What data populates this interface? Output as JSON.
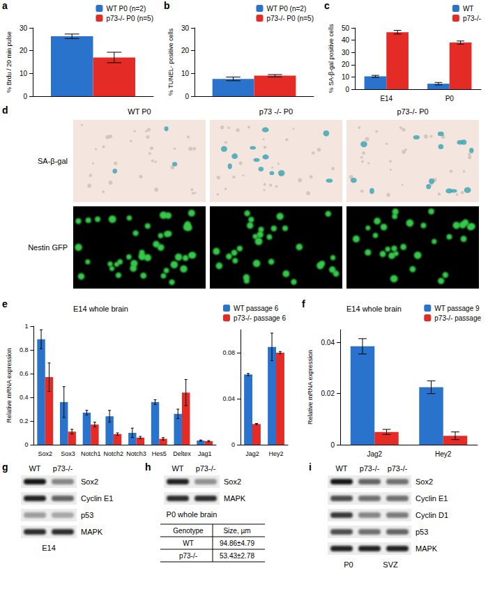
{
  "chart_data": [
    {
      "panel": "a",
      "type": "bar",
      "categories": [
        null
      ],
      "y_label": "% Brdu / 20 min pulse",
      "ylim": [
        0,
        30
      ],
      "yticks": [
        0,
        10,
        20,
        30
      ],
      "grid": false,
      "legend": "top-right",
      "series": [
        {
          "name": "WT P0 (n=2)",
          "color": "#2a73cc",
          "values": [
            26.3
          ],
          "errors": [
            1.0
          ]
        },
        {
          "name": "p73-/- P0 (n=5)",
          "color": "#e52b25",
          "values": [
            17.0
          ],
          "errors": [
            2.3
          ]
        }
      ]
    },
    {
      "panel": "b",
      "type": "bar",
      "categories": [
        null
      ],
      "y_label": "% TUNEL- positive cells",
      "ylim": [
        0,
        30
      ],
      "yticks": [
        0,
        10,
        20,
        30
      ],
      "grid": false,
      "legend": "top-right",
      "series": [
        {
          "name": "WT P0 (n=2)",
          "color": "#2a73cc",
          "values": [
            7.6
          ],
          "errors": [
            0.8
          ]
        },
        {
          "name": "p73-/- P0 (n=5)",
          "color": "#e52b25",
          "values": [
            9.0
          ],
          "errors": [
            0.5
          ]
        }
      ]
    },
    {
      "panel": "c",
      "type": "bar",
      "categories": [
        "E14",
        "P0"
      ],
      "y_label": "% SA-β-gal positive cells",
      "ylim": [
        0,
        50
      ],
      "yticks": [
        0,
        10,
        20,
        30,
        40,
        50
      ],
      "grid": false,
      "legend": "top-right",
      "series": [
        {
          "name": "WT",
          "color": "#2a73cc",
          "values": [
            10.5,
            4.5
          ],
          "errors": [
            0.8,
            1.0
          ]
        },
        {
          "name": "p73-/-",
          "color": "#e52b25",
          "values": [
            46.5,
            38.0
          ],
          "errors": [
            1.5,
            1.3
          ]
        }
      ]
    },
    {
      "panel": "e",
      "type": "bar",
      "title": "E14 whole brain",
      "y_label": "Relative mRNA expression",
      "grid": false,
      "legend": "top-right",
      "series": [
        {
          "name": "WT passage 6",
          "color": "#2a73cc"
        },
        {
          "name": "p73-/- passage 6",
          "color": "#e52b25"
        }
      ],
      "subplots": [
        {
          "categories": [
            "Sox2",
            "Sox3",
            "Notch1",
            "Notch2",
            "Notch3",
            "Hes5",
            "Deltex",
            "Jag1"
          ],
          "ylim": [
            0,
            1
          ],
          "yticks": [
            0,
            0.2,
            0.4,
            0.6,
            0.8,
            1
          ],
          "values": [
            [
              0.89,
              0.36,
              0.27,
              0.24,
              0.1,
              0.36,
              0.26,
              0.035
            ],
            [
              0.57,
              0.11,
              0.17,
              0.09,
              0.06,
              0.05,
              0.44,
              0.03
            ]
          ],
          "errors": [
            [
              0.08,
              0.13,
              0.02,
              0.05,
              0.04,
              0.02,
              0.04,
              0.005
            ],
            [
              0.12,
              0.02,
              0.02,
              0.01,
              0.01,
              0.01,
              0.11,
              0.005
            ]
          ]
        },
        {
          "categories": [
            "Jag2",
            "Hey2"
          ],
          "ylim": [
            0,
            0.1
          ],
          "yticks": [
            0,
            0.04,
            0.08
          ],
          "values": [
            [
              0.061,
              0.085
            ],
            [
              0.018,
              0.08
            ]
          ],
          "errors": [
            [
              0.001,
              0.012
            ],
            [
              0.0005,
              0.001
            ]
          ]
        }
      ]
    },
    {
      "panel": "f",
      "type": "bar",
      "title": "E14 whole brain",
      "y_label": "Relative mRNA expression",
      "categories": [
        "Jag2",
        "Hey2"
      ],
      "ylim": [
        0,
        0.045
      ],
      "yticks": [
        0,
        0.02,
        0.04
      ],
      "grid": false,
      "legend": "top-right",
      "series": [
        {
          "name": "WT passage 9",
          "color": "#2a73cc",
          "values": [
            0.0385,
            0.0225
          ],
          "errors": [
            0.003,
            0.0025
          ]
        },
        {
          "name": "p73-/- passage",
          "color": "#e52b25",
          "values": [
            0.005,
            0.0035
          ],
          "errors": [
            0.001,
            0.0015
          ]
        }
      ]
    }
  ],
  "images": {
    "panel": "d",
    "columns": [
      "WT P0",
      "p73 -/- P0",
      "p73-/- P0"
    ],
    "rows": [
      "SA-β-gal",
      "Nestin GFP"
    ],
    "blue_cells": [
      3,
      12,
      14
    ]
  },
  "blots": [
    {
      "panel": "g",
      "lanes": [
        "WT",
        "p73-/-"
      ],
      "rows": [
        {
          "label": "Sox2",
          "bands": [
            0.95,
            0.45
          ]
        },
        {
          "label": "Cyclin E1",
          "bands": [
            0.9,
            0.6
          ]
        },
        {
          "label": "p53",
          "bands": [
            0.35,
            0.3
          ]
        },
        {
          "label": "MAPK",
          "bands": [
            0.85,
            0.85
          ]
        }
      ],
      "captions": [
        "E14"
      ]
    },
    {
      "panel": "h",
      "lanes": [
        "WT",
        "p73-/-"
      ],
      "rows": [
        {
          "label": "Sox2",
          "bands": [
            0.9,
            0.4
          ]
        },
        {
          "label": "MAPK",
          "bands": [
            0.85,
            0.85
          ]
        }
      ],
      "captions": [
        "P0 whole brain"
      ],
      "table": {
        "header": [
          "Genotype",
          "Size, µm"
        ],
        "rows": [
          [
            "WT",
            "94.86±4.79"
          ],
          [
            "p73-/-",
            "53.43±2.78"
          ]
        ]
      }
    },
    {
      "panel": "i",
      "lanes": [
        "WT",
        "p73-/-",
        "p73-/-"
      ],
      "rows": [
        {
          "label": "Sox2",
          "bands": [
            0.95,
            0.6,
            0.55
          ]
        },
        {
          "label": "Cyclin E1",
          "bands": [
            0.7,
            0.55,
            0.55
          ]
        },
        {
          "label": "Cyclin D1",
          "bands": [
            0.8,
            0.45,
            0.5
          ]
        },
        {
          "label": "p53",
          "bands": [
            0.7,
            0.55,
            0.6
          ]
        },
        {
          "label": "MAPK",
          "bands": [
            0.9,
            0.9,
            0.9
          ]
        }
      ],
      "captions": [
        "P0",
        "SVZ"
      ]
    }
  ]
}
